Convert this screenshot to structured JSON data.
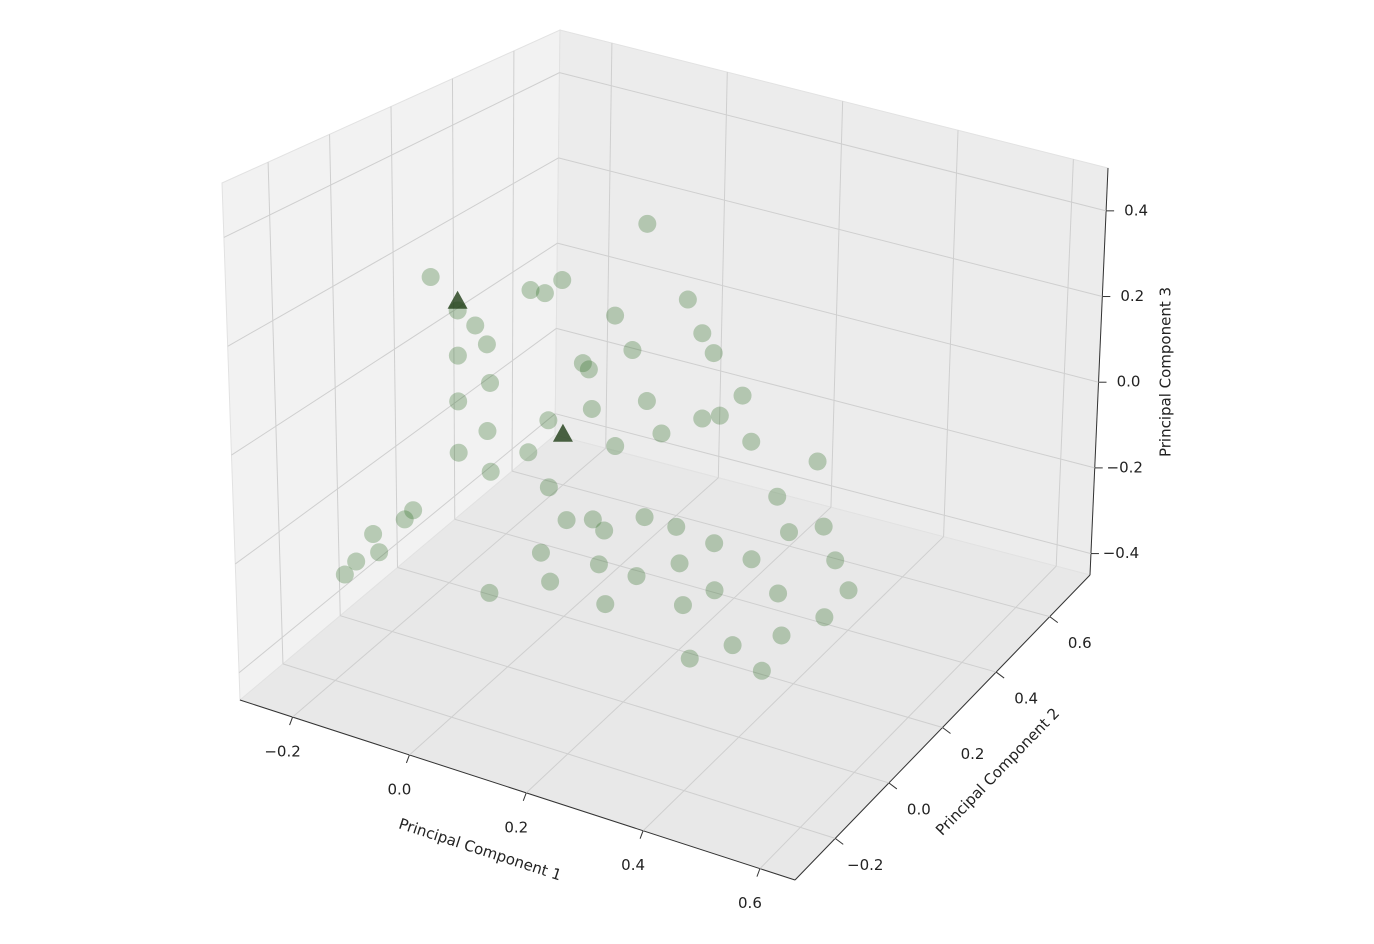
{
  "chart_data": {
    "type": "scatter3d",
    "xlabel": "Principal Component 1",
    "ylabel": "Principal Component 2",
    "zlabel": "Principal Component 3",
    "xlim": [
      -0.29,
      0.66
    ],
    "ylim": [
      -0.35,
      0.75
    ],
    "zlim": [
      -0.45,
      0.5
    ],
    "xticks": [
      {
        "value": -0.2,
        "label": "−0.2"
      },
      {
        "value": 0,
        "label": "0.0"
      },
      0.2,
      0.4,
      0.6
    ],
    "yticks": [
      {
        "value": -0.2,
        "label": "−0.2"
      },
      {
        "value": 0,
        "label": "0.0"
      },
      0.2,
      0.4,
      0.6
    ],
    "zticks": [
      {
        "value": -0.4,
        "label": "−0.4"
      },
      {
        "value": -0.2,
        "label": "−0.2"
      },
      {
        "value": 0,
        "label": "0.0"
      },
      0.2,
      0.4
    ],
    "grid": true,
    "series": [
      {
        "color": "#2d6e23",
        "marker": "o",
        "alpha": 0.3,
        "x": [
          0.03,
          0.08,
          -0.02,
          0.12,
          0.15,
          -0.05,
          0.0,
          0.05,
          0.1,
          0.18,
          0.2,
          0.22,
          0.25,
          0.06,
          -0.08,
          -0.1,
          -0.12,
          -0.15,
          -0.18,
          -0.16,
          -0.14,
          -0.12,
          -0.2,
          -0.22,
          -0.25,
          -0.24,
          -0.18,
          -0.26,
          0.02,
          0.08,
          0.12,
          0.16,
          0.3,
          0.28,
          0.32,
          0.35,
          0.18,
          0.1,
          0.04,
          0.09,
          0.14,
          0.2,
          0.26,
          0.3,
          0.36,
          0.4,
          0.45,
          0.52,
          0.5,
          0.45,
          0.42,
          0.38,
          0.48,
          0.4,
          -0.04,
          0.0,
          -0.08,
          0.06,
          0.15,
          0.24,
          -0.2,
          -0.02,
          0.33,
          0.44,
          0.2,
          0.28
        ],
        "y": [
          0.09,
          0.05,
          0.12,
          0.1,
          0.02,
          0.05,
          0.15,
          0.2,
          0.18,
          0.12,
          0.05,
          0.15,
          0.1,
          0.0,
          0.1,
          0.15,
          0.18,
          0.2,
          0.2,
          0.16,
          0.12,
          0.08,
          0.05,
          0.0,
          -0.02,
          0.02,
          0.04,
          -0.04,
          0.25,
          0.28,
          0.25,
          0.22,
          0.12,
          0.05,
          0.08,
          0.15,
          -0.02,
          -0.05,
          0.3,
          0.31,
          0.35,
          0.32,
          0.3,
          0.25,
          0.22,
          0.18,
          0.2,
          0.145,
          0.1,
          0.05,
          0.1,
          0.02,
          0.18,
          0.28,
          0.22,
          0.2,
          0.25,
          0.15,
          0.0,
          0.2,
          0.15,
          -0.02,
          -0.03,
          0.0,
          0.28,
          0.18
        ],
        "z": [
          -0.12,
          -0.15,
          -0.08,
          -0.18,
          -0.2,
          -0.1,
          -0.02,
          0.0,
          -0.05,
          -0.14,
          -0.22,
          -0.16,
          -0.2,
          -0.2,
          -0.05,
          0.02,
          0.08,
          0.1,
          0.12,
          0.05,
          -0.02,
          -0.1,
          -0.25,
          -0.3,
          -0.32,
          -0.28,
          -0.22,
          -0.34,
          0.05,
          0.1,
          0.02,
          -0.02,
          -0.15,
          -0.25,
          -0.22,
          -0.18,
          -0.25,
          -0.22,
          0.15,
          0.36,
          0.2,
          0.12,
          0.06,
          0.0,
          -0.08,
          -0.12,
          -0.1,
          -0.18,
          -0.22,
          -0.25,
          -0.2,
          -0.28,
          -0.15,
          -0.02,
          0.2,
          0.25,
          0.18,
          0.12,
          -0.1,
          0.05,
          0.2,
          -0.3,
          -0.3,
          -0.3,
          0.18,
          0.08
        ]
      },
      {
        "color": "#1f3d17",
        "marker": "^",
        "alpha": 0.8,
        "x": [
          -0.18,
          0.04
        ],
        "y": [
          0.2,
          0.12
        ],
        "z": [
          0.14,
          -0.02
        ]
      }
    ]
  }
}
